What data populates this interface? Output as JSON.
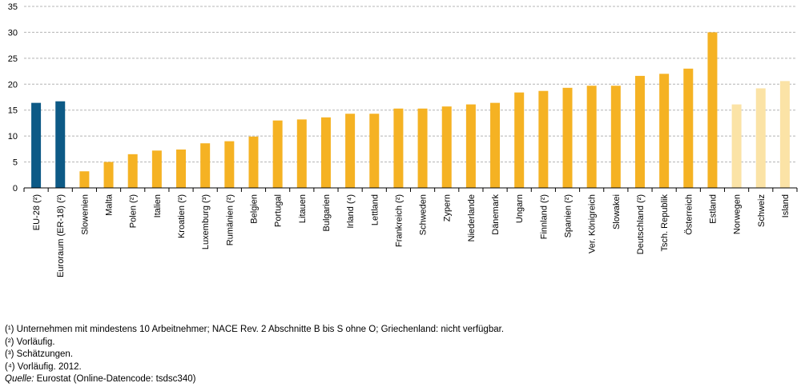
{
  "chart_data": {
    "type": "bar",
    "title": "",
    "xlabel": "",
    "ylabel": "",
    "ylim": [
      0,
      35
    ],
    "yticks": [
      0,
      5,
      10,
      15,
      20,
      25,
      30,
      35
    ],
    "grid": true,
    "colors": {
      "aggregate": "#0d5a86",
      "eu_member": "#f5b223",
      "efta": "#fbe3a6"
    },
    "categories": [
      "EU-28 (²)",
      "Euroraum (ER-18) (²)",
      "Slowenien",
      "Malta",
      "Polen (²)",
      "Italien",
      "Kroatien (²)",
      "Luxemburg (³)",
      "Rumänien (²)",
      "Belgien",
      "Portugal",
      "Litauen",
      "Bulgarien",
      "Irland (⁴)",
      "Lettland",
      "Frankreich (²)",
      "Schweden",
      "Zypern",
      "Niederlande",
      "Dänemark",
      "Ungarn",
      "Finnland (²)",
      "Spanien (²)",
      "Ver. Königreich",
      "Slowakei",
      "Deutschland (²)",
      "Tsch. Republik",
      "Österreich",
      "Estland",
      "Norwegen",
      "Schweiz",
      "Island"
    ],
    "groups": [
      "aggregate",
      "aggregate",
      "eu_member",
      "eu_member",
      "eu_member",
      "eu_member",
      "eu_member",
      "eu_member",
      "eu_member",
      "eu_member",
      "eu_member",
      "eu_member",
      "eu_member",
      "eu_member",
      "eu_member",
      "eu_member",
      "eu_member",
      "eu_member",
      "eu_member",
      "eu_member",
      "eu_member",
      "eu_member",
      "eu_member",
      "eu_member",
      "eu_member",
      "eu_member",
      "eu_member",
      "eu_member",
      "eu_member",
      "efta",
      "efta",
      "efta"
    ],
    "values": [
      16.4,
      16.7,
      3.2,
      5.0,
      6.5,
      7.2,
      7.4,
      8.6,
      9.0,
      9.9,
      13.0,
      13.2,
      13.6,
      14.3,
      14.3,
      15.3,
      15.3,
      15.7,
      16.1,
      16.4,
      18.4,
      18.7,
      19.3,
      19.7,
      19.7,
      21.6,
      22.0,
      23.0,
      30.0,
      16.1,
      19.2,
      20.6
    ]
  },
  "footnotes": [
    "(¹) Unternehmen mit mindestens 10 Arbeitnehmer; NACE Rev. 2 Abschnitte B bis S ohne O; Griechenland: nicht verfügbar.",
    "(²) Vorläufig.",
    "(³) Schätzungen.",
    "(⁴) Vorläufig. 2012."
  ],
  "source": {
    "label": "Quelle:",
    "text": "Eurostat (Online-Datencode: tsdsc340)"
  }
}
